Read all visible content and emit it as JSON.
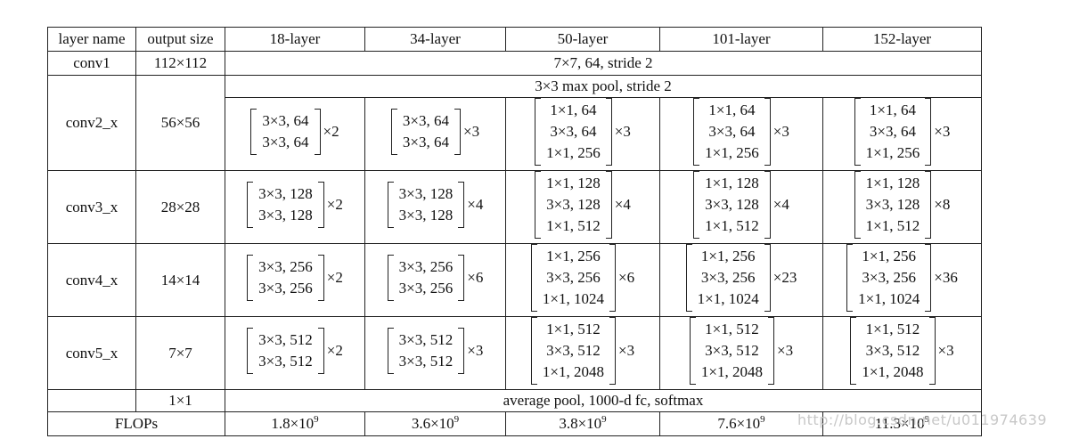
{
  "header": [
    "layer name",
    "output size",
    "18-layer",
    "34-layer",
    "50-layer",
    "101-layer",
    "152-layer"
  ],
  "conv1": {
    "name": "conv1",
    "size": "112×112",
    "spec": "7×7, 64, stride 2"
  },
  "pool": {
    "spec": "3×3 max pool, stride 2"
  },
  "blocks": [
    {
      "name": "conv2_x",
      "size": "56×56",
      "cells": [
        {
          "lines": [
            "3×3, 64",
            "3×3, 64"
          ],
          "rep": "×2"
        },
        {
          "lines": [
            "3×3, 64",
            "3×3, 64"
          ],
          "rep": "×3"
        },
        {
          "lines": [
            "1×1, 64",
            "3×3, 64",
            "1×1, 256"
          ],
          "rep": "×3"
        },
        {
          "lines": [
            "1×1, 64",
            "3×3, 64",
            "1×1, 256"
          ],
          "rep": "×3"
        },
        {
          "lines": [
            "1×1, 64",
            "3×3, 64",
            "1×1, 256"
          ],
          "rep": "×3"
        }
      ]
    },
    {
      "name": "conv3_x",
      "size": "28×28",
      "cells": [
        {
          "lines": [
            "3×3, 128",
            "3×3, 128"
          ],
          "rep": "×2"
        },
        {
          "lines": [
            "3×3, 128",
            "3×3, 128"
          ],
          "rep": "×4"
        },
        {
          "lines": [
            "1×1, 128",
            "3×3, 128",
            "1×1, 512"
          ],
          "rep": "×4"
        },
        {
          "lines": [
            "1×1, 128",
            "3×3, 128",
            "1×1, 512"
          ],
          "rep": "×4"
        },
        {
          "lines": [
            "1×1, 128",
            "3×3, 128",
            "1×1, 512"
          ],
          "rep": "×8"
        }
      ]
    },
    {
      "name": "conv4_x",
      "size": "14×14",
      "cells": [
        {
          "lines": [
            "3×3, 256",
            "3×3, 256"
          ],
          "rep": "×2"
        },
        {
          "lines": [
            "3×3, 256",
            "3×3, 256"
          ],
          "rep": "×6"
        },
        {
          "lines": [
            "1×1, 256",
            "3×3, 256",
            "1×1, 1024"
          ],
          "rep": "×6"
        },
        {
          "lines": [
            "1×1, 256",
            "3×3, 256",
            "1×1, 1024"
          ],
          "rep": "×23"
        },
        {
          "lines": [
            "1×1, 256",
            "3×3, 256",
            "1×1, 1024"
          ],
          "rep": "×36"
        }
      ]
    },
    {
      "name": "conv5_x",
      "size": "7×7",
      "cells": [
        {
          "lines": [
            "3×3, 512",
            "3×3, 512"
          ],
          "rep": "×2"
        },
        {
          "lines": [
            "3×3, 512",
            "3×3, 512"
          ],
          "rep": "×3"
        },
        {
          "lines": [
            "1×1, 512",
            "3×3, 512",
            "1×1, 2048"
          ],
          "rep": "×3"
        },
        {
          "lines": [
            "1×1, 512",
            "3×3, 512",
            "1×1, 2048"
          ],
          "rep": "×3"
        },
        {
          "lines": [
            "1×1, 512",
            "3×3, 512",
            "1×1, 2048"
          ],
          "rep": "×3"
        }
      ]
    }
  ],
  "final": {
    "size": "1×1",
    "spec": "average pool, 1000-d fc, softmax"
  },
  "flops": {
    "label": "FLOPs",
    "values": [
      {
        "base": "1.8×10",
        "exp": "9"
      },
      {
        "base": "3.6×10",
        "exp": "9"
      },
      {
        "base": "3.8×10",
        "exp": "9"
      },
      {
        "base": "7.6×10",
        "exp": "9"
      },
      {
        "base": "11.3×10",
        "exp": "9"
      }
    ]
  },
  "watermark": "http://blog.csdn.net/u011974639"
}
